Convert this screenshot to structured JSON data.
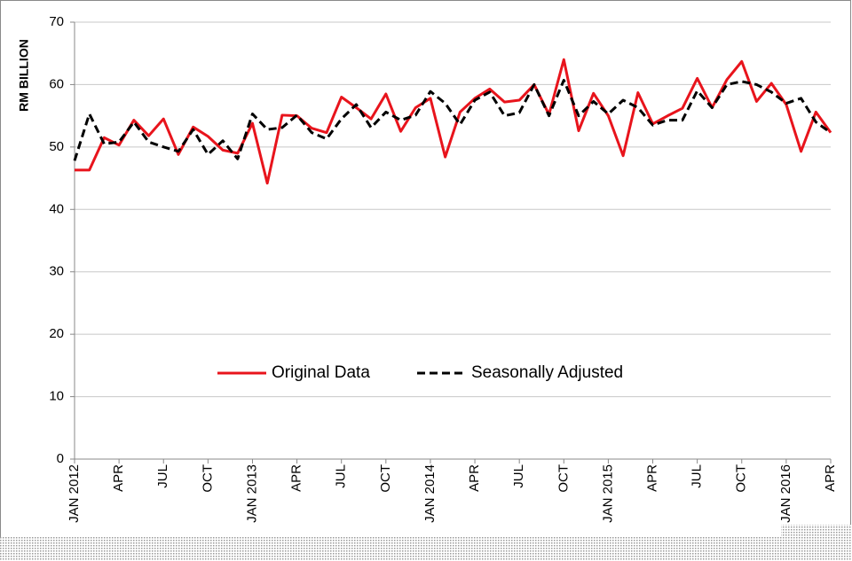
{
  "chart_data": {
    "type": "line",
    "y_label": "RM BILLION",
    "categories": [
      "JAN 2012",
      null,
      null,
      "APR",
      null,
      null,
      "JUL",
      null,
      null,
      "OCT",
      null,
      null,
      "JAN 2013",
      null,
      null,
      "APR",
      null,
      null,
      "JUL",
      null,
      null,
      "OCT",
      null,
      null,
      "JAN 2014",
      null,
      null,
      "APR",
      null,
      null,
      "JUL",
      null,
      null,
      "OCT",
      null,
      null,
      "JAN 2015",
      null,
      null,
      "APR",
      null,
      null,
      "JUL",
      null,
      null,
      "OCT",
      null,
      null,
      "JAN 2016",
      null,
      null,
      "APR"
    ],
    "series": [
      {
        "name": "Original Data",
        "color": "#e8141c",
        "dashed": false,
        "values": [
          46.3,
          46.3,
          51.5,
          50.3,
          54.3,
          51.8,
          54.5,
          48.8,
          53.2,
          51.7,
          49.5,
          49.0,
          53.8,
          44.2,
          55.1,
          55.0,
          53.0,
          52.3,
          58.0,
          56.3,
          54.5,
          58.5,
          52.5,
          56.3,
          57.8,
          48.4,
          55.6,
          57.8,
          59.3,
          57.2,
          57.5,
          60.0,
          55.2,
          64.0,
          52.6,
          58.6,
          55.0,
          48.6,
          58.7,
          53.7,
          55.0,
          56.2,
          61.0,
          56.3,
          60.8,
          63.7,
          57.3,
          60.2,
          56.8,
          49.3,
          55.6,
          52.3
        ]
      },
      {
        "name": "Seasonally Adjusted",
        "color": "#000000",
        "dashed": true,
        "values": [
          47.8,
          55.3,
          50.5,
          50.8,
          54.0,
          50.8,
          50.0,
          49.3,
          52.8,
          48.8,
          51.0,
          48.1,
          55.3,
          52.8,
          53.1,
          55.1,
          52.3,
          51.3,
          54.5,
          56.8,
          53.1,
          55.6,
          54.3,
          55.1,
          58.9,
          57.0,
          53.6,
          57.5,
          58.8,
          55.0,
          55.5,
          60.0,
          55.0,
          60.7,
          55.0,
          57.3,
          55.3,
          57.5,
          56.3,
          53.5,
          54.3,
          54.3,
          59.0,
          56.3,
          60.0,
          60.5,
          60.0,
          58.8,
          57.0,
          57.8,
          54.0,
          52.3
        ]
      }
    ],
    "ylim": [
      0,
      70
    ],
    "yticks": [
      0,
      10,
      20,
      30,
      40,
      50,
      60,
      70
    ],
    "grid": true,
    "legend": "inside"
  }
}
